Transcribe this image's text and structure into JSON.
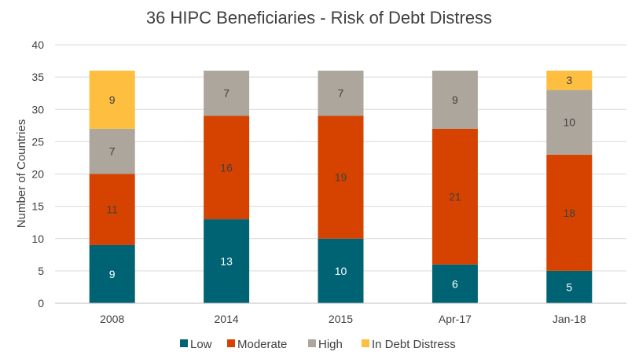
{
  "chart_data": {
    "type": "bar",
    "stacked": true,
    "title": "36 HIPC Beneficiaries - Risk of Debt Distress",
    "xlabel": "",
    "ylabel": "Number of Countries",
    "ylim": [
      0,
      40
    ],
    "yticks": [
      0,
      5,
      10,
      15,
      20,
      25,
      30,
      35,
      40
    ],
    "grid": true,
    "legend_position": "bottom",
    "categories": [
      "2008",
      "2014",
      "2015",
      "Apr-17",
      "Jan-18"
    ],
    "series": [
      {
        "name": "Low",
        "color": "#006374",
        "label_color": "#ffffff",
        "values": [
          9,
          13,
          10,
          6,
          5
        ]
      },
      {
        "name": "Moderate",
        "color": "#D64300",
        "label_color": "#404040",
        "values": [
          11,
          16,
          19,
          21,
          18
        ]
      },
      {
        "name": "High",
        "color": "#ADA69C",
        "label_color": "#404040",
        "values": [
          7,
          7,
          7,
          9,
          10
        ]
      },
      {
        "name": "In Debt Distress",
        "color": "#FEBE40",
        "label_color": "#404040",
        "values": [
          9,
          0,
          0,
          0,
          3
        ]
      }
    ]
  }
}
